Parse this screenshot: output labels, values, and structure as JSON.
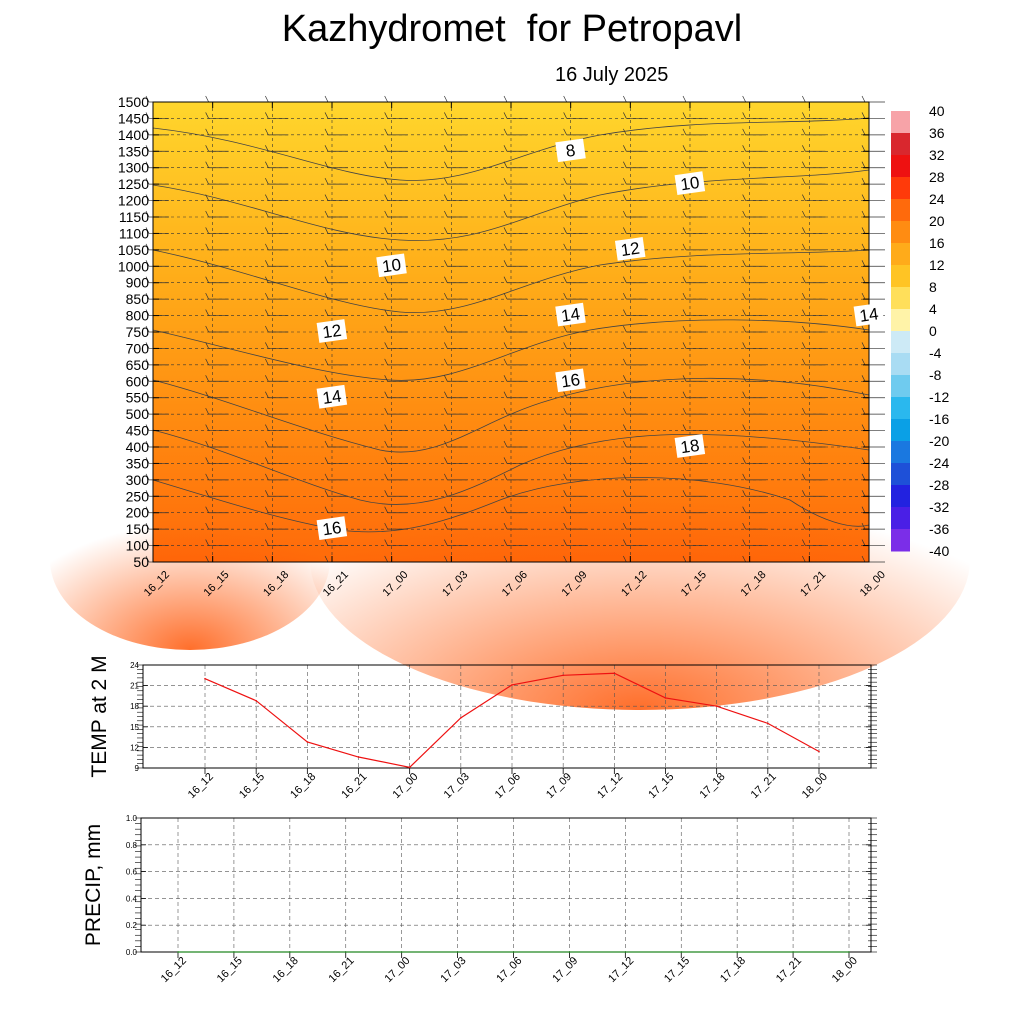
{
  "header": {
    "title": "Kazhydromet  for Petropavl",
    "date": "16 July 2025"
  },
  "time_labels": [
    "16_12",
    "16_15",
    "16_18",
    "16_21",
    "17_00",
    "17_03",
    "17_06",
    "17_09",
    "17_12",
    "17_15",
    "17_18",
    "17_21",
    "18_00"
  ],
  "chart_data": [
    {
      "type": "heatmap",
      "title": "",
      "xlabel": "",
      "ylabel": "",
      "x": [
        "16_12",
        "16_15",
        "16_18",
        "16_21",
        "17_00",
        "17_03",
        "17_06",
        "17_09",
        "17_12",
        "17_15",
        "17_18",
        "17_21",
        "18_00"
      ],
      "y_ticks": [
        1500,
        1450,
        1400,
        1350,
        1300,
        1250,
        1200,
        1150,
        1100,
        1050,
        1000,
        900,
        850,
        800,
        750,
        700,
        650,
        600,
        550,
        500,
        450,
        400,
        350,
        300,
        250,
        200,
        150,
        100,
        50
      ],
      "colorbar": {
        "ticks": [
          40,
          36,
          32,
          28,
          24,
          20,
          16,
          12,
          8,
          4,
          0,
          -4,
          -8,
          -12,
          -16,
          -20,
          -24,
          -28,
          -32,
          -36,
          -40
        ],
        "range": [
          -40,
          40
        ]
      },
      "contour_labels": [
        {
          "value": "8",
          "time": "17_09",
          "level": 1350
        },
        {
          "value": "10",
          "time": "17_15",
          "level": 1250
        },
        {
          "value": "10",
          "time": "17_00",
          "level": 1000
        },
        {
          "value": "12",
          "time": "17_12",
          "level": 1050
        },
        {
          "value": "12",
          "time": "16_21",
          "level": 750
        },
        {
          "value": "14",
          "time": "17_09",
          "level": 800
        },
        {
          "value": "14",
          "time": "18_00",
          "level": 800
        },
        {
          "value": "14",
          "time": "16_21",
          "level": 550
        },
        {
          "value": "16",
          "time": "17_09",
          "level": 600
        },
        {
          "value": "16",
          "time": "16_21",
          "level": 150
        },
        {
          "value": "18",
          "time": "17_15",
          "level": 400
        }
      ],
      "colors": {
        "warm_top": "#ffd52a",
        "warm_bottom": "#ff5a08"
      }
    },
    {
      "type": "line",
      "title": "",
      "ylabel": "TEMP at 2 M",
      "xlabel": "",
      "x": [
        "16_12",
        "16_15",
        "16_18",
        "16_21",
        "17_00",
        "17_03",
        "17_06",
        "17_09",
        "17_12",
        "17_15",
        "17_18",
        "17_21",
        "18_00"
      ],
      "series": [
        {
          "values": [
            22.0,
            18.8,
            12.8,
            10.6,
            9.1,
            16.3,
            21.1,
            22.5,
            22.8,
            19.2,
            18.0,
            15.5,
            11.4
          ],
          "color": "#ee1111"
        }
      ],
      "ylim": [
        9,
        24
      ],
      "yticks": [
        9,
        12,
        15,
        18,
        21,
        24
      ],
      "grid": true
    },
    {
      "type": "line",
      "title": "",
      "ylabel": "PRECIP, mm",
      "xlabel": "",
      "x": [
        "16_12",
        "16_15",
        "16_18",
        "16_21",
        "17_00",
        "17_03",
        "17_06",
        "17_09",
        "17_12",
        "17_15",
        "17_18",
        "17_21",
        "18_00"
      ],
      "series": [
        {
          "values": [
            0,
            0,
            0,
            0,
            0,
            0,
            0,
            0,
            0,
            0,
            0,
            0,
            0
          ],
          "color": "#228822"
        }
      ],
      "ylim": [
        0,
        1.0
      ],
      "yticks": [
        "0.0",
        "0.2",
        "0.4",
        "0.6",
        "0.8",
        "1.0"
      ],
      "grid": true
    }
  ]
}
